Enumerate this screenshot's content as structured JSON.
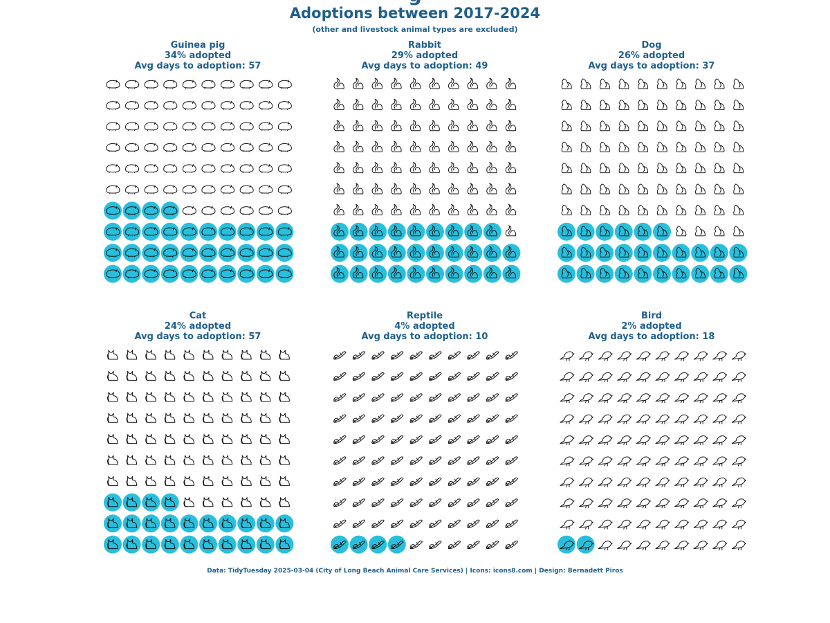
{
  "header": {
    "partial_title": "g",
    "title": "Adoptions between 2017-2024",
    "subtitle": "(other and livestock animal types are excluded)"
  },
  "footer": "Data: TidyTuesday 2025-03-04 (City of Long Beach Animal Care Services) | Icons: icons8.com | Design: Bernadett Piros",
  "colors": {
    "accent": "#29bfdc",
    "text": "#1f5f8b",
    "icon_stroke": "#111111"
  },
  "chart_data": [
    {
      "type": "waffle",
      "animal": "Guinea pig",
      "icon": "guinea-pig-icon",
      "percent_adopted": 34,
      "avg_days": 57,
      "adopted_label": "34% adopted",
      "avg_label": "Avg days to adoption: 57"
    },
    {
      "type": "waffle",
      "animal": "Rabbit",
      "icon": "rabbit-icon",
      "percent_adopted": 29,
      "avg_days": 49,
      "adopted_label": "29% adopted",
      "avg_label": "Avg days to adoption: 49"
    },
    {
      "type": "waffle",
      "animal": "Dog",
      "icon": "dog-icon",
      "percent_adopted": 26,
      "avg_days": 37,
      "adopted_label": "26% adopted",
      "avg_label": "Avg days to adoption: 37"
    },
    {
      "type": "waffle",
      "animal": "Cat",
      "icon": "cat-icon",
      "percent_adopted": 24,
      "avg_days": 57,
      "adopted_label": "24% adopted",
      "avg_label": "Avg days to adoption: 57"
    },
    {
      "type": "waffle",
      "animal": "Reptile",
      "icon": "reptile-icon",
      "percent_adopted": 4,
      "avg_days": 10,
      "adopted_label": "4% adopted",
      "avg_label": "Avg days to adoption: 10"
    },
    {
      "type": "waffle",
      "animal": "Bird",
      "icon": "bird-icon",
      "percent_adopted": 2,
      "avg_days": 18,
      "adopted_label": "2% adopted",
      "avg_label": "Avg days to adoption: 18"
    }
  ]
}
